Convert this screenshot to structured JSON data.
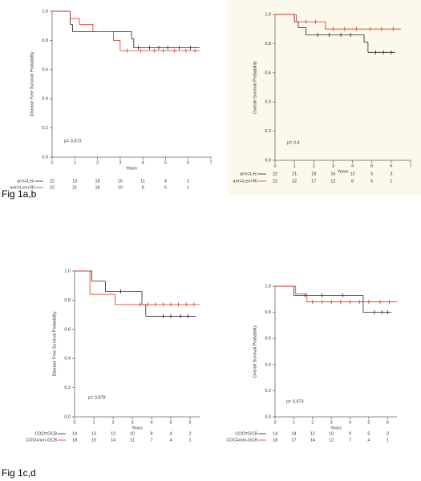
{
  "chart_data": [
    {
      "type": "km",
      "ylabel": "Disease Free Survival Probability",
      "xlabel": "Years",
      "annotation": "p= 0.873",
      "xlim": [
        0,
        7
      ],
      "ylim": [
        0,
        1
      ],
      "xticks": [
        0,
        1,
        2,
        3,
        4,
        5,
        6,
        7
      ],
      "yticks": [
        {
          "value": 0,
          "label": "0.0"
        },
        0.2,
        0.4,
        0.6,
        0.8,
        {
          "value": 1,
          "label": "1.0"
        }
      ],
      "series": [
        {
          "name": "arm=Len",
          "color": "#222222",
          "x": [
            0,
            0.8,
            0.9,
            3.5,
            3.6,
            6.5
          ],
          "values": [
            1,
            0.91,
            0.86,
            0.81,
            0.75,
            0.75
          ],
          "censored": [
            3.8,
            4.3,
            4.7,
            5.1,
            5.6,
            6.1
          ],
          "at_risk": [
            22,
            19,
            18,
            16,
            11,
            4,
            2
          ]
        },
        {
          "name": "arm=Len+Rt",
          "color": "#d9341f",
          "x": [
            0,
            0.8,
            1.2,
            1.8,
            2.7,
            3.0,
            6.5
          ],
          "values": [
            1,
            0.95,
            0.91,
            0.86,
            0.8,
            0.73,
            0.73
          ],
          "censored": [
            3.3,
            3.9,
            4.5,
            4.9,
            5.4,
            5.9,
            6.3
          ],
          "at_risk": [
            22,
            21,
            16,
            10,
            8,
            5,
            1
          ]
        }
      ]
    },
    {
      "type": "km",
      "ylabel": "Overall Survival Probability",
      "xlabel": "Years",
      "annotation": "p= 0.4",
      "xlim": [
        0,
        7
      ],
      "ylim": [
        0,
        1
      ],
      "xticks": [
        0,
        1,
        2,
        3,
        4,
        5,
        6,
        7
      ],
      "yticks": [
        {
          "value": 0,
          "label": "0.0"
        },
        0.2,
        0.4,
        0.6,
        0.8,
        {
          "value": 1,
          "label": "1.0"
        }
      ],
      "series": [
        {
          "name": "arm=Len",
          "color": "#222222",
          "x": [
            0,
            1.0,
            1.2,
            1.6,
            4.6,
            4.8,
            6.2
          ],
          "values": [
            1,
            0.95,
            0.91,
            0.86,
            0.81,
            0.74,
            0.74
          ],
          "censored": [
            2.2,
            2.8,
            3.4,
            3.9,
            5.2,
            5.6,
            6.0
          ],
          "at_risk": [
            22,
            21,
            18,
            16,
            12,
            5,
            3
          ]
        },
        {
          "name": "arm=Len+Rt",
          "color": "#d9341f",
          "x": [
            0,
            1.1,
            2.6,
            6.5
          ],
          "values": [
            1,
            0.95,
            0.9,
            0.9
          ],
          "censored": [
            1.6,
            2.1,
            3.0,
            3.6,
            4.2,
            4.9,
            5.5,
            6.1
          ],
          "at_risk": [
            22,
            22,
            17,
            12,
            8,
            5,
            1
          ]
        }
      ]
    },
    {
      "type": "km",
      "ylabel": "Disease Free Survival Probability",
      "xlabel": "Years",
      "annotation": "p= 0.878",
      "xlim": [
        0,
        6.5
      ],
      "ylim": [
        0,
        1
      ],
      "xticks": [
        0,
        1,
        2,
        3,
        4,
        5,
        6
      ],
      "yticks": [
        {
          "value": 0,
          "label": "0.0"
        },
        0.2,
        0.4,
        0.6,
        0.8,
        {
          "value": 1,
          "label": "1.0"
        }
      ],
      "series": [
        {
          "name": "COO=GCB",
          "color": "#222222",
          "x": [
            0,
            0.9,
            1.6,
            3.5,
            3.7,
            6.3
          ],
          "values": [
            1,
            0.93,
            0.86,
            0.77,
            0.69,
            0.69
          ],
          "censored": [
            2.4,
            4.6,
            5.0,
            5.5,
            5.9
          ],
          "at_risk": [
            14,
            13,
            12,
            10,
            8,
            4,
            2
          ]
        },
        {
          "name": "COO=non-GCB",
          "color": "#d9341f",
          "x": [
            0,
            0.8,
            2.1,
            6.5
          ],
          "values": [
            1,
            0.84,
            0.77,
            0.77
          ],
          "censored": [
            3.4,
            3.8,
            4.2,
            4.6,
            5.0,
            5.4,
            5.8,
            6.2
          ],
          "at_risk": [
            18,
            15,
            14,
            11,
            7,
            4,
            1
          ]
        }
      ]
    },
    {
      "type": "km",
      "ylabel": "Overall Survival Probability",
      "xlabel": "Years",
      "annotation": "p= 0.973",
      "xlim": [
        0,
        6.5
      ],
      "ylim": [
        0,
        1
      ],
      "xticks": [
        0,
        1,
        2,
        3,
        4,
        5,
        6
      ],
      "yticks": [
        {
          "value": 0,
          "label": "0.0"
        },
        0.2,
        0.4,
        0.6,
        0.8,
        {
          "value": 1,
          "label": "1.0"
        }
      ],
      "series": [
        {
          "name": "COO=GCB",
          "color": "#222222",
          "x": [
            0,
            1.0,
            4.7,
            6.2
          ],
          "values": [
            1,
            0.93,
            0.8,
            0.8
          ],
          "censored": [
            1.6,
            2.5,
            3.6,
            5.3,
            5.7,
            6.0
          ],
          "at_risk": [
            14,
            14,
            12,
            10,
            9,
            5,
            3
          ]
        },
        {
          "name": "COO=non-GCB",
          "color": "#d9341f",
          "x": [
            0,
            1.1,
            1.7,
            6.5
          ],
          "values": [
            1,
            0.94,
            0.88,
            0.88
          ],
          "censored": [
            2.0,
            2.5,
            3.0,
            3.5,
            4.0,
            4.5,
            5.0,
            5.6,
            6.1
          ],
          "at_risk": [
            18,
            17,
            14,
            12,
            7,
            4,
            1
          ]
        }
      ]
    }
  ],
  "captions": [
    "Fig 1a,b",
    "Fig 1c,d"
  ]
}
